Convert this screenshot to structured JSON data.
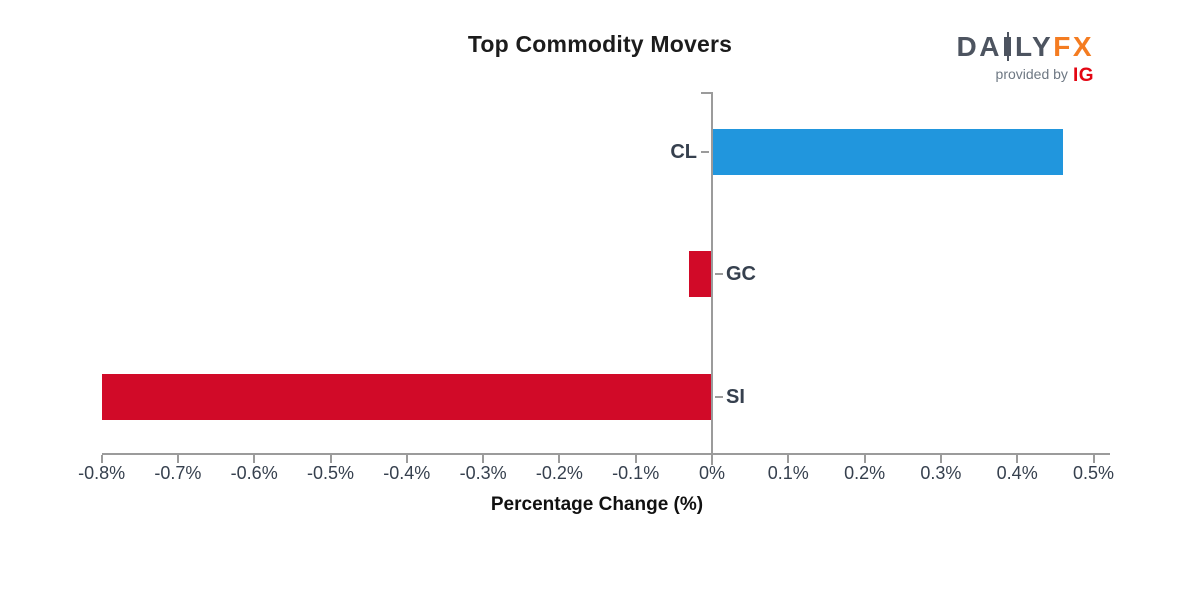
{
  "branding": {
    "logo_text_1": "DA",
    "logo_icon": "candlestick-icon",
    "logo_text_2": "LY",
    "logo_text_3": "FX",
    "provided_by": "provided by",
    "partner": "IG",
    "colors": {
      "slate": "#4d5460",
      "orange": "#f47c21",
      "partner_red": "#e30613",
      "provided_by_gray": "#6e7883"
    }
  },
  "chart_data": {
    "type": "bar",
    "orientation": "horizontal",
    "title": "Top Commodity Movers",
    "xlabel": "Percentage Change (%)",
    "categories": [
      "CL",
      "GC",
      "SI"
    ],
    "values": [
      0.46,
      -0.03,
      -0.8
    ],
    "value_unit": "%",
    "xlim": [
      -0.8,
      0.522
    ],
    "xticks": [
      -0.8,
      -0.7,
      -0.6,
      -0.5,
      -0.4,
      -0.3,
      -0.2,
      -0.1,
      0,
      0.1,
      0.2,
      0.3,
      0.4,
      0.5
    ],
    "xtick_labels": [
      "-0.8%",
      "-0.7%",
      "-0.6%",
      "-0.5%",
      "-0.4%",
      "-0.3%",
      "-0.2%",
      "-0.1%",
      "0%",
      "0.1%",
      "0.2%",
      "0.3%",
      "0.4%",
      "0.5%"
    ],
    "grid": false,
    "legend": "none",
    "colors": {
      "positive_bar": "#2196dd",
      "negative_bar": "#d10a28",
      "axis": "#9b9b9b",
      "tick_label": "#36404e",
      "category_label": "#36404e",
      "title": "#1c1c1c"
    }
  }
}
